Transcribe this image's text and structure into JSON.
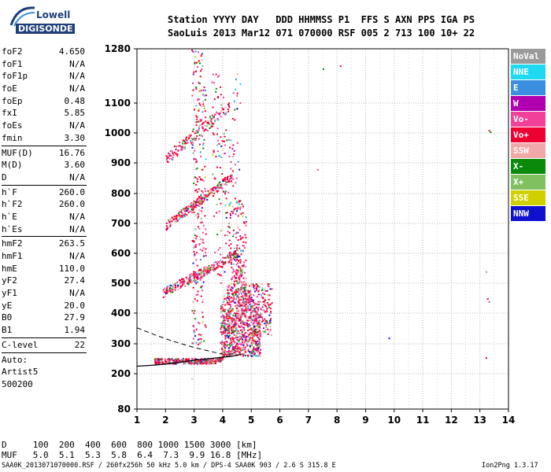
{
  "logo": {
    "line1": "Lowell",
    "line2": "DIGISONDE"
  },
  "header": {
    "row1": "Station YYYY DAY   DDD HHMMSS P1  FFS S AXN PPS IGA PS",
    "row2": "SaoLuis 2013 Mar12 071 070000 RSF 005 2 713 100 10+ 22"
  },
  "params": {
    "group1": [
      {
        "name": "foF2",
        "value": "4.650"
      },
      {
        "name": "foF1",
        "value": "N/A"
      },
      {
        "name": "foF1p",
        "value": "N/A"
      },
      {
        "name": "foE",
        "value": "N/A"
      },
      {
        "name": "foEp",
        "value": "0.48"
      },
      {
        "name": "fxI",
        "value": "5.85"
      },
      {
        "name": "foEs",
        "value": "N/A"
      },
      {
        "name": "fmin",
        "value": "3.30"
      }
    ],
    "group2": [
      {
        "name": "MUF(D)",
        "value": "16.76"
      },
      {
        "name": "M(D)",
        "value": "3.60"
      },
      {
        "name": "D",
        "value": "N/A"
      }
    ],
    "group3": [
      {
        "name": "h`F",
        "value": "260.0"
      },
      {
        "name": "h`F2",
        "value": "260.0"
      },
      {
        "name": "h`E",
        "value": "N/A"
      },
      {
        "name": "h`Es",
        "value": "N/A"
      }
    ],
    "group4": [
      {
        "name": "hmF2",
        "value": "263.5"
      },
      {
        "name": "hmF1",
        "value": "N/A"
      },
      {
        "name": "hmE",
        "value": "110.0"
      },
      {
        "name": "yF2",
        "value": "27.4"
      },
      {
        "name": "yF1",
        "value": "N/A"
      },
      {
        "name": "yE",
        "value": "20.0"
      },
      {
        "name": "B0",
        "value": "27.9"
      },
      {
        "name": "B1",
        "value": "1.94"
      }
    ],
    "clevel": {
      "name": "C-level",
      "value": "22"
    },
    "auto": [
      "Auto:",
      "Artist5",
      "500200"
    ]
  },
  "legend": [
    {
      "label": "NoVal",
      "color": "#9a9a9a"
    },
    {
      "label": "NNE",
      "color": "#1fd9f0"
    },
    {
      "label": "E",
      "color": "#3a8fe0"
    },
    {
      "label": "W",
      "color": "#b000b0"
    },
    {
      "label": "Vo-",
      "color": "#f0409a"
    },
    {
      "label": "Vo+",
      "color": "#ee0033"
    },
    {
      "label": "SSW",
      "color": "#f2a8a8"
    },
    {
      "label": "X-",
      "color": "#0a8a0a"
    },
    {
      "label": "X+",
      "color": "#80c060"
    },
    {
      "label": "SSE",
      "color": "#d0d000"
    },
    {
      "label": "NNW",
      "color": "#1010d0"
    }
  ],
  "bottom": {
    "row1": "D     100  200  400  600  800 1000 1500 3000 [km]",
    "row2": "MUF   5.0  5.1  5.3  5.8  6.4  7.3  9.9 16.8 [MHz]"
  },
  "footer": {
    "left": "SAA0K_2013071070000.RSF / 260fx256h 50 kHz 5.0 km / DPS-4 SAA0K 903 / 2.6 S 315.8 E",
    "right": "Ion2Png 1.3.17"
  },
  "chart_data": {
    "type": "scatter",
    "xlabel": "",
    "ylabel": "",
    "xlim": [
      1,
      14
    ],
    "ylim": [
      80,
      1280
    ],
    "y_scale": "piecewise",
    "x_ticks": [
      "1",
      "2",
      "3",
      "4",
      "5",
      "6",
      "7",
      "8",
      "9",
      "10",
      "11",
      "12",
      "13",
      "14"
    ],
    "y_ticks": [
      "80",
      "200",
      "300",
      "400",
      "500",
      "600",
      "700",
      "800",
      "900",
      "1000",
      "1100",
      "1280"
    ],
    "grid": "dotted",
    "traces": [
      {
        "name": "O-trace profile",
        "x": [
          1.0,
          1.5,
          2.0,
          2.5,
          3.0,
          3.5,
          4.0,
          4.3,
          4.55,
          4.65
        ],
        "y": [
          225,
          228,
          232,
          238,
          245,
          250,
          255,
          258,
          263,
          265
        ]
      },
      {
        "name": "profile extrapolation (dashed)",
        "x": [
          1.0,
          1.6,
          2.2,
          2.8,
          3.2,
          3.6,
          4.0
        ],
        "y": [
          352,
          330,
          310,
          293,
          283,
          274,
          265
        ]
      }
    ]
  }
}
